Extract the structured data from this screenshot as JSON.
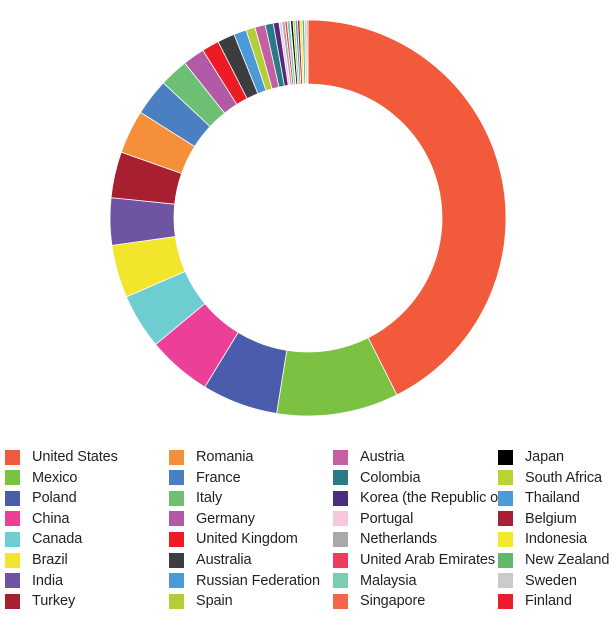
{
  "chart_data": {
    "type": "pie",
    "variant": "donut",
    "title": "",
    "legend_placement": "bottom",
    "series": [
      {
        "name": "United States",
        "value": 45.4,
        "color": "#f15a3b"
      },
      {
        "name": "Mexico",
        "value": 10.6,
        "color": "#7cc242"
      },
      {
        "name": "Poland",
        "value": 6.6,
        "color": "#4a5cab"
      },
      {
        "name": "China",
        "value": 5.6,
        "color": "#ec3f97"
      },
      {
        "name": "Canada",
        "value": 4.8,
        "color": "#6dcdd1"
      },
      {
        "name": "Brazil",
        "value": 4.6,
        "color": "#f2e52c"
      },
      {
        "name": "India",
        "value": 4.1,
        "color": "#6f54a3"
      },
      {
        "name": "Turkey",
        "value": 4.0,
        "color": "#a8202f"
      },
      {
        "name": "Romania",
        "value": 3.8,
        "color": "#f58f3a"
      },
      {
        "name": "France",
        "value": 3.2,
        "color": "#4a7fc1"
      },
      {
        "name": "Italy",
        "value": 2.5,
        "color": "#6dbf73"
      },
      {
        "name": "Germany",
        "value": 1.9,
        "color": "#b25aa6"
      },
      {
        "name": "United Kingdom",
        "value": 1.5,
        "color": "#ed1c24"
      },
      {
        "name": "Australia",
        "value": 1.5,
        "color": "#3d3d3f"
      },
      {
        "name": "Russian Federation",
        "value": 1.1,
        "color": "#4c9ad5"
      },
      {
        "name": "Spain",
        "value": 0.8,
        "color": "#b2cf3a"
      },
      {
        "name": "Austria",
        "value": 0.9,
        "color": "#c45fa3"
      },
      {
        "name": "Colombia",
        "value": 0.7,
        "color": "#2b7a86"
      },
      {
        "name": "Korea (the Republic of)",
        "value": 0.5,
        "color": "#4e2d7e"
      },
      {
        "name": "Portugal",
        "value": 0.25,
        "color": "#f7c8dd"
      },
      {
        "name": "Netherlands",
        "value": 0.25,
        "color": "#a7a9ac"
      },
      {
        "name": "United Arab Emirates",
        "value": 0.2,
        "color": "#ee3c5b"
      },
      {
        "name": "Malaysia",
        "value": 0.25,
        "color": "#79cdb1"
      },
      {
        "name": "Singapore",
        "value": 0.05,
        "color": "#f26649"
      },
      {
        "name": "Japan",
        "value": 0.2,
        "color": "#000000"
      },
      {
        "name": "South Africa",
        "value": 0.2,
        "color": "#b8d432"
      },
      {
        "name": "Thailand",
        "value": 0.2,
        "color": "#4c9bd5"
      },
      {
        "name": "Belgium",
        "value": 0.2,
        "color": "#a91f36"
      },
      {
        "name": "Indonesia",
        "value": 0.2,
        "color": "#f2e82e"
      },
      {
        "name": "New Zealand",
        "value": 0.2,
        "color": "#61b96d"
      },
      {
        "name": "Sweden",
        "value": 0.2,
        "color": "#cacbcc"
      },
      {
        "name": "Finland",
        "value": 0.1,
        "color": "#ec1c2e"
      }
    ]
  }
}
